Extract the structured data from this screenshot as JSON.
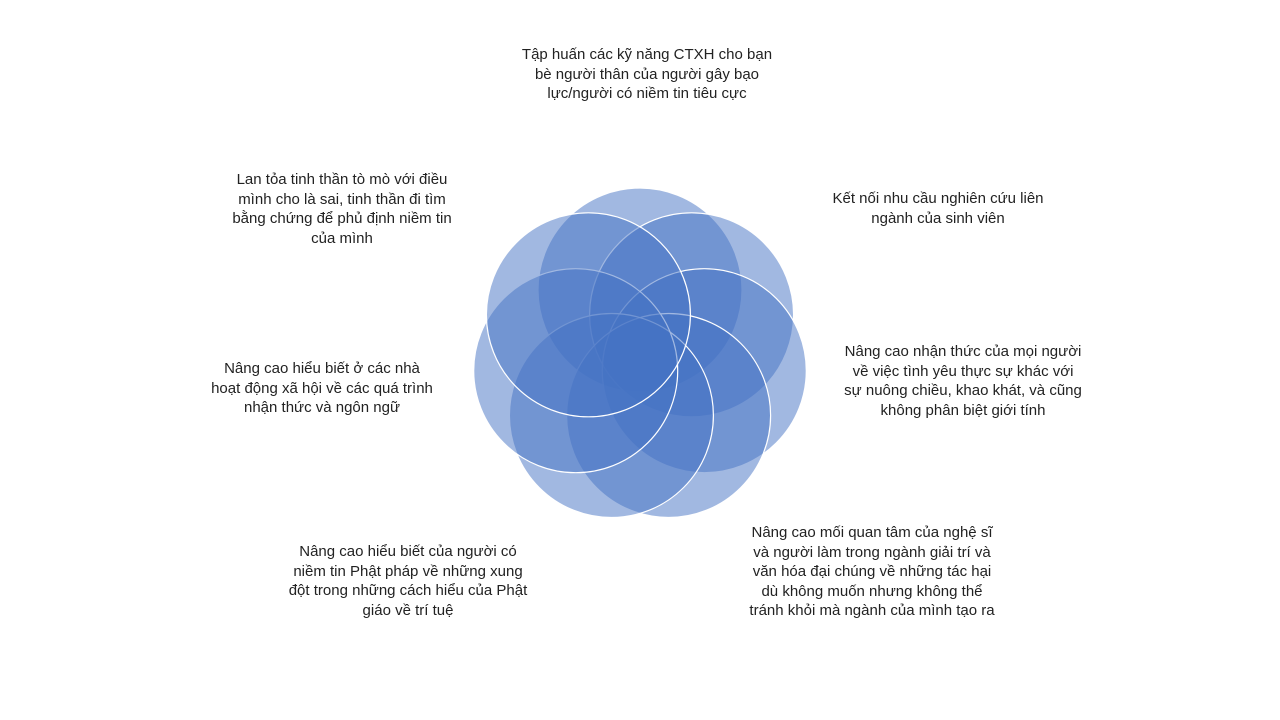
{
  "diagram": {
    "type": "radial-venn",
    "circle_count": 7,
    "fill_color": "#4472C4",
    "fill_opacity": 0.5,
    "stroke_color": "#FFFFFF",
    "labels": [
      "Tập huấn các kỹ năng CTXH cho bạn bè người thân của người gây bạo lực/người có niềm tin tiêu cực",
      "Kết nối nhu cầu nghiên cứu liên ngành của sinh viên",
      "Nâng cao nhận thức của mọi người về việc tình yêu thực sự khác với sự nuông chiều, khao khát, và cũng không phân biệt giới tính",
      "Nâng cao mối quan tâm của nghệ sĩ và người làm trong ngành giải trí và văn hóa đại chúng về những tác hại dù không muốn nhưng không thể tránh khỏi mà ngành của mình tạo ra",
      "Nâng cao hiểu biết của người có niềm tin Phật pháp về những xung đột trong những cách hiểu của Phật giáo về trí tuệ",
      "Nâng cao hiểu biết ở các nhà hoạt động xã hội về các quá trình nhận thức và ngôn ngữ",
      "Lan tỏa tinh thần tò mò với điều mình cho là sai, tinh thần đi tìm bằng chứng để phủ định niềm tin của mình"
    ]
  }
}
